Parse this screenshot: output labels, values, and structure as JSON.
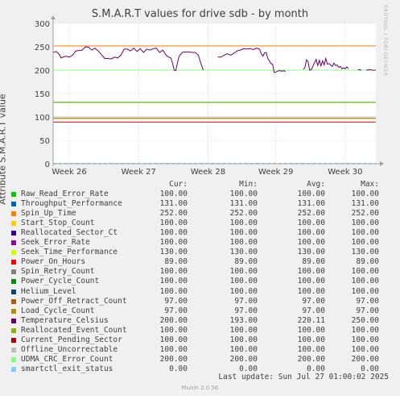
{
  "title": "S.M.A.R.T values for drive sdb - by month",
  "side_label": "RRDTOOL / TOBI OETIKER",
  "columns": {
    "cur": "Cur:",
    "min": "Min:",
    "avg": "Avg:",
    "max": "Max:"
  },
  "last_update": "Last update: Sun Jul 27 01:00:02 2025",
  "footer": "Munin 2.0.56",
  "chart_data": {
    "type": "line",
    "title": "S.M.A.R.T values for drive sdb - by month",
    "ylabel": "Attribute S.M.A.R.T value",
    "xlabel": "",
    "ylim": [
      0,
      300
    ],
    "yticks": [
      "0",
      "50",
      "100",
      "150",
      "200",
      "250",
      "300"
    ],
    "x_ticks": [
      "Week 26",
      "Week 27",
      "Week 28",
      "Week 29",
      "Week 30"
    ],
    "grid": true,
    "series": [
      {
        "name": "Raw_Read_Error_Rate",
        "color": "#00cc00",
        "cur": "100.00",
        "min": "100.00",
        "avg": "100.00",
        "max": "100.00",
        "value": 100
      },
      {
        "name": "Throughput_Performance",
        "color": "#0066b3",
        "cur": "131.00",
        "min": "131.00",
        "avg": "131.00",
        "max": "131.00",
        "value": 131
      },
      {
        "name": "Spin_Up_Time",
        "color": "#ff8000",
        "cur": "252.00",
        "min": "252.00",
        "avg": "252.00",
        "max": "252.00",
        "value": 252
      },
      {
        "name": "Start_Stop_Count",
        "color": "#ffcc00",
        "cur": "100.00",
        "min": "100.00",
        "avg": "100.00",
        "max": "100.00",
        "value": 100
      },
      {
        "name": "Reallocated_Sector_Ct",
        "color": "#330099",
        "cur": "100.00",
        "min": "100.00",
        "avg": "100.00",
        "max": "100.00",
        "value": 100
      },
      {
        "name": "Seek_Error_Rate",
        "color": "#990099",
        "cur": "100.00",
        "min": "100.00",
        "avg": "100.00",
        "max": "100.00",
        "value": 100
      },
      {
        "name": "Seek_Time_Performance",
        "color": "#ccff00",
        "cur": "130.00",
        "min": "130.00",
        "avg": "130.00",
        "max": "130.00",
        "value": 130
      },
      {
        "name": "Power_On_Hours",
        "color": "#ff0000",
        "cur": "89.00",
        "min": "89.00",
        "avg": "89.00",
        "max": "89.00",
        "value": 89
      },
      {
        "name": "Spin_Retry_Count",
        "color": "#808080",
        "cur": "100.00",
        "min": "100.00",
        "avg": "100.00",
        "max": "100.00",
        "value": 100
      },
      {
        "name": "Power_Cycle_Count",
        "color": "#008f00",
        "cur": "100.00",
        "min": "100.00",
        "avg": "100.00",
        "max": "100.00",
        "value": 100
      },
      {
        "name": "Helium_Level",
        "color": "#00487d",
        "cur": "100.00",
        "min": "100.00",
        "avg": "100.00",
        "max": "100.00",
        "value": 100
      },
      {
        "name": "Power_Off_Retract_Count",
        "color": "#b35a00",
        "cur": "97.00",
        "min": "97.00",
        "avg": "97.00",
        "max": "97.00",
        "value": 97
      },
      {
        "name": "Load_Cycle_Count",
        "color": "#b38f00",
        "cur": "97.00",
        "min": "97.00",
        "avg": "97.00",
        "max": "97.00",
        "value": 97
      },
      {
        "name": "Temperature_Celsius",
        "color": "#6b006b",
        "cur": "200.00",
        "min": "193.00",
        "avg": "220.11",
        "max": "250.00",
        "value": 200
      },
      {
        "name": "Reallocated_Event_Count",
        "color": "#8fb300",
        "cur": "100.00",
        "min": "100.00",
        "avg": "100.00",
        "max": "100.00",
        "value": 100
      },
      {
        "name": "Current_Pending_Sector",
        "color": "#b30000",
        "cur": "100.00",
        "min": "100.00",
        "avg": "100.00",
        "max": "100.00",
        "value": 100
      },
      {
        "name": "Offline_Uncorrectable",
        "color": "#bebebe",
        "cur": "100.00",
        "min": "100.00",
        "avg": "100.00",
        "max": "100.00",
        "value": 100
      },
      {
        "name": "UDMA_CRC_Error_Count",
        "color": "#80ff80",
        "cur": "200.00",
        "min": "200.00",
        "avg": "200.00",
        "max": "200.00",
        "value": 200
      },
      {
        "name": "smartctl_exit_status",
        "color": "#80c9ff",
        "cur": "0.00",
        "min": "0.00",
        "avg": "0.00",
        "max": "0.00",
        "value": 0
      }
    ],
    "temperature_trace": [
      {
        "segment": [
          [
            0.0,
            238
          ],
          [
            0.01,
            240
          ],
          [
            0.02,
            233
          ],
          [
            0.025,
            226
          ],
          [
            0.03,
            228
          ],
          [
            0.04,
            230
          ],
          [
            0.05,
            228
          ],
          [
            0.06,
            232
          ],
          [
            0.07,
            241
          ],
          [
            0.08,
            242
          ],
          [
            0.09,
            243
          ],
          [
            0.1,
            250
          ],
          [
            0.11,
            249
          ],
          [
            0.12,
            243
          ],
          [
            0.13,
            247
          ],
          [
            0.14,
            241
          ],
          [
            0.15,
            233
          ],
          [
            0.16,
            225
          ],
          [
            0.17,
            225
          ],
          [
            0.18,
            224
          ],
          [
            0.19,
            228
          ],
          [
            0.2,
            226
          ],
          [
            0.21,
            232
          ],
          [
            0.22,
            245
          ],
          [
            0.23,
            245
          ],
          [
            0.24,
            241
          ],
          [
            0.25,
            247
          ],
          [
            0.26,
            240
          ],
          [
            0.27,
            246
          ],
          [
            0.28,
            238
          ],
          [
            0.29,
            245
          ],
          [
            0.3,
            243
          ],
          [
            0.31,
            246
          ],
          [
            0.32,
            247
          ],
          [
            0.33,
            238
          ],
          [
            0.34,
            243
          ],
          [
            0.35,
            232
          ],
          [
            0.36,
            227
          ],
          [
            0.365,
            226
          ],
          [
            0.37,
            215
          ],
          [
            0.375,
            200
          ],
          [
            0.38,
            199
          ],
          [
            0.385,
            215
          ],
          [
            0.39,
            229
          ],
          [
            0.4,
            238
          ],
          [
            0.41,
            239
          ],
          [
            0.42,
            239
          ],
          [
            0.43,
            238
          ],
          [
            0.44,
            238
          ],
          [
            0.45,
            232
          ],
          [
            0.455,
            220
          ],
          [
            0.46,
            210
          ],
          [
            0.465,
            200
          ]
        ]
      },
      {
        "segment": [
          [
            0.51,
            228
          ],
          [
            0.52,
            228
          ],
          [
            0.53,
            232
          ],
          [
            0.54,
            235
          ],
          [
            0.55,
            232
          ],
          [
            0.56,
            236
          ],
          [
            0.57,
            241
          ],
          [
            0.58,
            243
          ],
          [
            0.59,
            246
          ],
          [
            0.6,
            245
          ],
          [
            0.61,
            246
          ],
          [
            0.62,
            244
          ],
          [
            0.63,
            247
          ],
          [
            0.64,
            245
          ],
          [
            0.645,
            235
          ],
          [
            0.65,
            230
          ],
          [
            0.655,
            237
          ],
          [
            0.66,
            238
          ],
          [
            0.665,
            225
          ],
          [
            0.67,
            220
          ],
          [
            0.675,
            214
          ],
          [
            0.68,
            213
          ],
          [
            0.685,
            195
          ],
          [
            0.69,
            196
          ],
          [
            0.7,
            199
          ],
          [
            0.71,
            198
          ],
          [
            0.715,
            199
          ],
          [
            0.72,
            197
          ]
        ]
      },
      {
        "segment": [
          [
            0.775,
            202
          ],
          [
            0.78,
            205
          ],
          [
            0.785,
            222
          ],
          [
            0.79,
            218
          ],
          [
            0.795,
            200
          ],
          [
            0.8,
            201
          ],
          [
            0.81,
            216
          ],
          [
            0.815,
            223
          ],
          [
            0.82,
            210
          ],
          [
            0.825,
            221
          ],
          [
            0.83,
            209
          ],
          [
            0.835,
            220
          ],
          [
            0.84,
            211
          ],
          [
            0.845,
            225
          ],
          [
            0.85,
            213
          ],
          [
            0.855,
            214
          ],
          [
            0.86,
            211
          ],
          [
            0.865,
            208
          ],
          [
            0.87,
            215
          ],
          [
            0.875,
            210
          ],
          [
            0.88,
            211
          ],
          [
            0.885,
            206
          ],
          [
            0.89,
            208
          ],
          [
            0.895,
            203
          ],
          [
            0.9,
            205
          ],
          [
            0.905,
            203
          ],
          [
            0.91,
            207
          ],
          [
            0.915,
            203
          ]
        ]
      },
      {
        "segment": [
          [
            0.945,
            201
          ],
          [
            0.95,
            201
          ],
          [
            0.955,
            200
          ]
        ]
      },
      {
        "segment": [
          [
            0.97,
            200
          ],
          [
            0.98,
            201
          ],
          [
            0.99,
            200
          ],
          [
            1.0,
            200
          ]
        ]
      }
    ]
  }
}
